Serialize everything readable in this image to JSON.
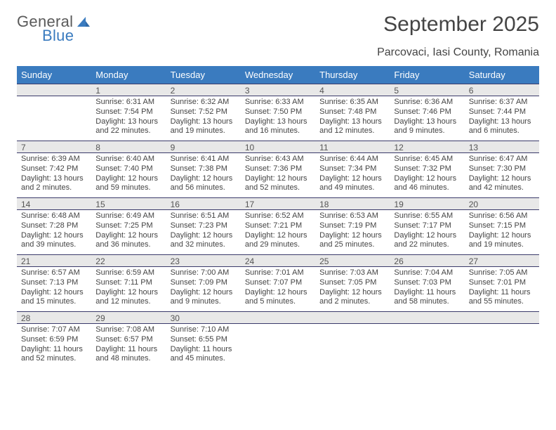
{
  "logo": {
    "text1": "General",
    "text2": "Blue"
  },
  "title": "September 2025",
  "location": "Parcovaci, Iasi County, Romania",
  "colors": {
    "header_bg": "#3a7bbf",
    "header_text": "#ffffff",
    "daybar_bg": "#e8e8e8",
    "daybar_border": "#3a3a6a",
    "body_bg": "#ffffff",
    "text": "#444444"
  },
  "weekdays": [
    "Sunday",
    "Monday",
    "Tuesday",
    "Wednesday",
    "Thursday",
    "Friday",
    "Saturday"
  ],
  "weeks": [
    [
      {
        "num": "",
        "sunrise": "",
        "sunset": "",
        "daylight": ""
      },
      {
        "num": "1",
        "sunrise": "Sunrise: 6:31 AM",
        "sunset": "Sunset: 7:54 PM",
        "daylight": "Daylight: 13 hours and 22 minutes."
      },
      {
        "num": "2",
        "sunrise": "Sunrise: 6:32 AM",
        "sunset": "Sunset: 7:52 PM",
        "daylight": "Daylight: 13 hours and 19 minutes."
      },
      {
        "num": "3",
        "sunrise": "Sunrise: 6:33 AM",
        "sunset": "Sunset: 7:50 PM",
        "daylight": "Daylight: 13 hours and 16 minutes."
      },
      {
        "num": "4",
        "sunrise": "Sunrise: 6:35 AM",
        "sunset": "Sunset: 7:48 PM",
        "daylight": "Daylight: 13 hours and 12 minutes."
      },
      {
        "num": "5",
        "sunrise": "Sunrise: 6:36 AM",
        "sunset": "Sunset: 7:46 PM",
        "daylight": "Daylight: 13 hours and 9 minutes."
      },
      {
        "num": "6",
        "sunrise": "Sunrise: 6:37 AM",
        "sunset": "Sunset: 7:44 PM",
        "daylight": "Daylight: 13 hours and 6 minutes."
      }
    ],
    [
      {
        "num": "7",
        "sunrise": "Sunrise: 6:39 AM",
        "sunset": "Sunset: 7:42 PM",
        "daylight": "Daylight: 13 hours and 2 minutes."
      },
      {
        "num": "8",
        "sunrise": "Sunrise: 6:40 AM",
        "sunset": "Sunset: 7:40 PM",
        "daylight": "Daylight: 12 hours and 59 minutes."
      },
      {
        "num": "9",
        "sunrise": "Sunrise: 6:41 AM",
        "sunset": "Sunset: 7:38 PM",
        "daylight": "Daylight: 12 hours and 56 minutes."
      },
      {
        "num": "10",
        "sunrise": "Sunrise: 6:43 AM",
        "sunset": "Sunset: 7:36 PM",
        "daylight": "Daylight: 12 hours and 52 minutes."
      },
      {
        "num": "11",
        "sunrise": "Sunrise: 6:44 AM",
        "sunset": "Sunset: 7:34 PM",
        "daylight": "Daylight: 12 hours and 49 minutes."
      },
      {
        "num": "12",
        "sunrise": "Sunrise: 6:45 AM",
        "sunset": "Sunset: 7:32 PM",
        "daylight": "Daylight: 12 hours and 46 minutes."
      },
      {
        "num": "13",
        "sunrise": "Sunrise: 6:47 AM",
        "sunset": "Sunset: 7:30 PM",
        "daylight": "Daylight: 12 hours and 42 minutes."
      }
    ],
    [
      {
        "num": "14",
        "sunrise": "Sunrise: 6:48 AM",
        "sunset": "Sunset: 7:28 PM",
        "daylight": "Daylight: 12 hours and 39 minutes."
      },
      {
        "num": "15",
        "sunrise": "Sunrise: 6:49 AM",
        "sunset": "Sunset: 7:25 PM",
        "daylight": "Daylight: 12 hours and 36 minutes."
      },
      {
        "num": "16",
        "sunrise": "Sunrise: 6:51 AM",
        "sunset": "Sunset: 7:23 PM",
        "daylight": "Daylight: 12 hours and 32 minutes."
      },
      {
        "num": "17",
        "sunrise": "Sunrise: 6:52 AM",
        "sunset": "Sunset: 7:21 PM",
        "daylight": "Daylight: 12 hours and 29 minutes."
      },
      {
        "num": "18",
        "sunrise": "Sunrise: 6:53 AM",
        "sunset": "Sunset: 7:19 PM",
        "daylight": "Daylight: 12 hours and 25 minutes."
      },
      {
        "num": "19",
        "sunrise": "Sunrise: 6:55 AM",
        "sunset": "Sunset: 7:17 PM",
        "daylight": "Daylight: 12 hours and 22 minutes."
      },
      {
        "num": "20",
        "sunrise": "Sunrise: 6:56 AM",
        "sunset": "Sunset: 7:15 PM",
        "daylight": "Daylight: 12 hours and 19 minutes."
      }
    ],
    [
      {
        "num": "21",
        "sunrise": "Sunrise: 6:57 AM",
        "sunset": "Sunset: 7:13 PM",
        "daylight": "Daylight: 12 hours and 15 minutes."
      },
      {
        "num": "22",
        "sunrise": "Sunrise: 6:59 AM",
        "sunset": "Sunset: 7:11 PM",
        "daylight": "Daylight: 12 hours and 12 minutes."
      },
      {
        "num": "23",
        "sunrise": "Sunrise: 7:00 AM",
        "sunset": "Sunset: 7:09 PM",
        "daylight": "Daylight: 12 hours and 9 minutes."
      },
      {
        "num": "24",
        "sunrise": "Sunrise: 7:01 AM",
        "sunset": "Sunset: 7:07 PM",
        "daylight": "Daylight: 12 hours and 5 minutes."
      },
      {
        "num": "25",
        "sunrise": "Sunrise: 7:03 AM",
        "sunset": "Sunset: 7:05 PM",
        "daylight": "Daylight: 12 hours and 2 minutes."
      },
      {
        "num": "26",
        "sunrise": "Sunrise: 7:04 AM",
        "sunset": "Sunset: 7:03 PM",
        "daylight": "Daylight: 11 hours and 58 minutes."
      },
      {
        "num": "27",
        "sunrise": "Sunrise: 7:05 AM",
        "sunset": "Sunset: 7:01 PM",
        "daylight": "Daylight: 11 hours and 55 minutes."
      }
    ],
    [
      {
        "num": "28",
        "sunrise": "Sunrise: 7:07 AM",
        "sunset": "Sunset: 6:59 PM",
        "daylight": "Daylight: 11 hours and 52 minutes."
      },
      {
        "num": "29",
        "sunrise": "Sunrise: 7:08 AM",
        "sunset": "Sunset: 6:57 PM",
        "daylight": "Daylight: 11 hours and 48 minutes."
      },
      {
        "num": "30",
        "sunrise": "Sunrise: 7:10 AM",
        "sunset": "Sunset: 6:55 PM",
        "daylight": "Daylight: 11 hours and 45 minutes."
      },
      {
        "num": "",
        "sunrise": "",
        "sunset": "",
        "daylight": ""
      },
      {
        "num": "",
        "sunrise": "",
        "sunset": "",
        "daylight": ""
      },
      {
        "num": "",
        "sunrise": "",
        "sunset": "",
        "daylight": ""
      },
      {
        "num": "",
        "sunrise": "",
        "sunset": "",
        "daylight": ""
      }
    ]
  ]
}
